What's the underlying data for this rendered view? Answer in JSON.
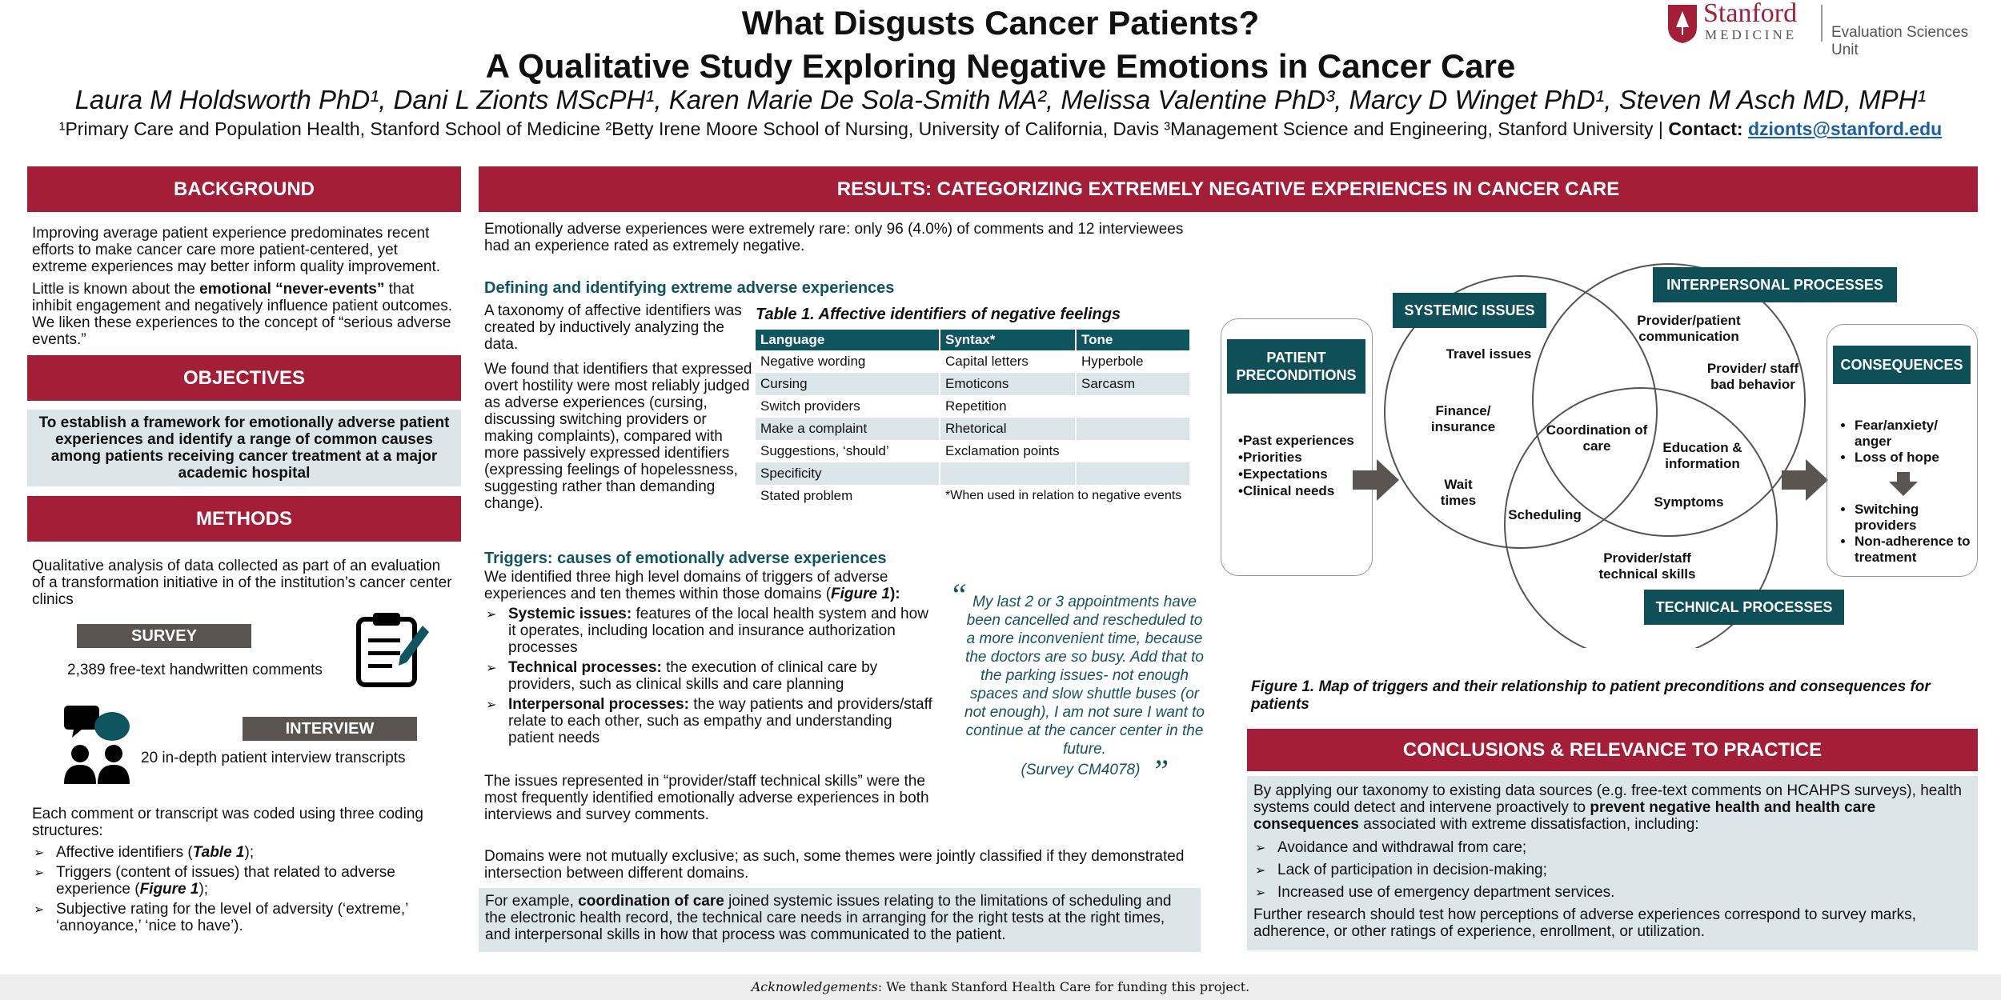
{
  "header": {
    "title_line1": "What Disgusts Cancer Patients?",
    "title_line2": "A Qualitative Study Exploring Negative Emotions in Cancer Care",
    "authors": "Laura M Holdsworth PhD¹, Dani L Zionts MScPH¹, Karen Marie De Sola-Smith MA², Melissa Valentine PhD³, Marcy D Winget PhD¹, Steven M Asch MD, MPH¹",
    "affiliations": "¹Primary Care and Population Health, Stanford School of Medicine ²Betty Irene Moore School of Nursing, University of California, Davis ³Management Science and Engineering, Stanford University | ",
    "contact_label": "Contact: ",
    "contact_email": "dzionts@stanford.edu",
    "logo_stanford": "Stanford",
    "logo_medicine": "MEDICINE",
    "logo_unit": "Evaluation Sciences Unit"
  },
  "background": {
    "heading": "BACKGROUND",
    "p1": "Improving average patient experience predominates recent efforts to make cancer care more patient-centered, yet extreme experiences may better inform quality improvement.",
    "p2_a": "Little is known about the ",
    "p2_bold": "emotional “never-events”",
    "p2_b": " that inhibit engagement and negatively influence patient outcomes. We liken these experiences to the concept of “serious adverse events.”"
  },
  "objectives": {
    "heading": "OBJECTIVES",
    "text": "To establish a framework for emotionally adverse patient experiences and identify a range of common causes among patients receiving cancer treatment at a major academic hospital"
  },
  "methods": {
    "heading": "METHODS",
    "intro": "Qualitative analysis of data collected as part of an evaluation of a transformation initiative in of the institution’s cancer center clinics",
    "survey_label": "SURVEY",
    "survey_text": "2,389 free-text handwritten comments",
    "interview_label": "INTERVIEW",
    "interview_text": "20 in-depth patient interview transcripts",
    "coding_intro": "Each comment or transcript was coded using three coding structures:",
    "b1_a": "Affective identifiers (",
    "b1_ref": "Table 1",
    "b1_b": ");",
    "b2_a": "Triggers (content of issues) that related to adverse experience (",
    "b2_ref": "Figure 1",
    "b2_b": ");",
    "b3": "Subjective rating for the level of adversity (‘extreme,’ ‘annoyance,’ ‘nice to have’)."
  },
  "results": {
    "heading": "RESULTS: CATEGORIZING EXTREMELY NEGATIVE EXPERIENCES IN CANCER CARE",
    "intro": "Emotionally adverse experiences were extremely rare: only 96 (4.0%) of comments and 12 interviewees had an experience rated as extremely negative.",
    "sub1": "Defining and identifying extreme adverse experiences",
    "tax1": "A taxonomy of affective identifiers was created by inductively analyzing the data.",
    "tax2": "We found that identifiers that expressed overt hostility were most reliably judged as adverse experiences (cursing, discussing switching providers or making complaints), compared with more passively expressed identifiers (expressing feelings of hopelessness, suggesting rather than demanding change).",
    "table_title": "Table 1. Affective identifiers of negative feelings",
    "table_headers": [
      "Language",
      "Syntax*",
      "Tone"
    ],
    "table_rows": [
      [
        "Negative wording",
        "Capital letters",
        "Hyperbole"
      ],
      [
        "Cursing",
        "Emoticons",
        "Sarcasm"
      ],
      [
        "Switch providers",
        "Repetition",
        ""
      ],
      [
        "Make a complaint",
        "Rhetorical",
        ""
      ],
      [
        "Suggestions, ‘should’",
        "Exclamation points",
        ""
      ],
      [
        "Specificity",
        "",
        ""
      ],
      [
        "Stated problem",
        "*When used in relation to negative events",
        ""
      ]
    ],
    "sub2": "Triggers: causes of emotionally adverse experiences",
    "trig_a": "We identified three high level domains of triggers of adverse experiences and ten themes within those domains (",
    "trig_ref": "Figure 1",
    "trig_b": "):",
    "t1_bold": "Systemic issues:",
    "t1": " features of the local health system and how it operates, including location and insurance authorization processes",
    "t2_bold": "Technical processes:",
    "t2": " the execution of clinical care by providers, such as clinical skills and care planning",
    "t3_bold": "Interpersonal processes:",
    "t3": " the way patients and providers/staff relate to each other, such as empathy and understanding patient needs",
    "issues": "The issues represented in “provider/staff technical skills” were the most frequently identified emotionally adverse experiences in both interviews and survey comments.",
    "quote": "My last 2 or 3 appointments have been cancelled and rescheduled to a more inconvenient time, because the doctors are so busy. Add that to the parking issues- not enough spaces and slow shuttle buses (or not enough), I am not sure I want to continue at the cancer center in the future.",
    "quote_src": "(Survey CM4078)",
    "domains": "Domains were not mutually exclusive; as such, some themes were jointly classified if they demonstrated intersection between different domains.",
    "example_a": "For example, ",
    "example_bold": "coordination of care",
    "example_b": " joined systemic issues relating to the limitations of scheduling and the electronic health record, the technical care needs in arranging for the right tests at the right times, and interpersonal skills in how that process was communicated to the patient."
  },
  "figure": {
    "pre_title": "PATIENT PRECONDITIONS",
    "pre_items": [
      "•Past experiences",
      "•Priorities",
      "•Expectations",
      "•Clinical needs"
    ],
    "systemic": "SYSTEMIC ISSUES",
    "interpersonal": "INTERPERSONAL PROCESSES",
    "technical": "TECHNICAL PROCESSES",
    "cons_title": "CONSEQUENCES",
    "cons_top": [
      "Fear/anxiety/ anger",
      "Loss of hope"
    ],
    "cons_bottom": [
      "Switching providers",
      "Non-adherence to treatment"
    ],
    "labels": {
      "travel": "Travel issues",
      "finance": "Finance/ insurance",
      "wait": "Wait times",
      "coord": "Coordination of care",
      "sched": "Scheduling",
      "comm": "Provider/patient communication",
      "bad": "Provider/ staff bad behavior",
      "edu": "Education & information",
      "symp": "Symptoms",
      "tech": "Provider/staff technical skills"
    },
    "caption": "Figure 1. Map of triggers and their relationship to patient preconditions and consequences for patients"
  },
  "conclusions": {
    "heading": "CONCLUSIONS & RELEVANCE TO PRACTICE",
    "p1_a": "By applying our taxonomy to existing data sources (e.g. free-text comments on HCAHPS surveys), health systems could detect and intervene proactively to ",
    "p1_bold": "prevent negative health and health care consequences",
    "p1_b": " associated with extreme dissatisfaction, including:",
    "items": [
      "Avoidance and withdrawal from care;",
      "Lack of participation in decision-making;",
      "Increased use of emergency department services."
    ],
    "p2": "Further research should test how perceptions of adverse experiences correspond to survey marks, adherence, or other ratings of experience, enrollment, or utilization."
  },
  "footer": {
    "ack_label": "Acknowledgements",
    "ack_text": ": We thank Stanford Health Care for funding this project."
  },
  "colors": {
    "header_red": "#a51e37",
    "teal": "#0f5560",
    "light_box": "#dce6e8"
  }
}
